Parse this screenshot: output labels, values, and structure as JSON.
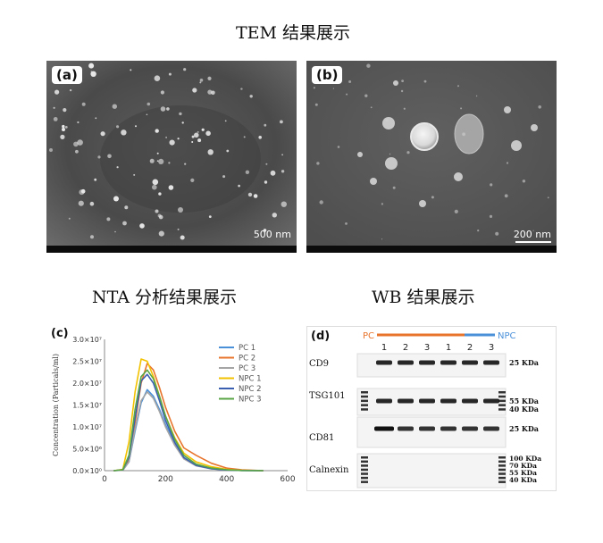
{
  "titles": {
    "tem": "TEM 结果展示",
    "nta": "NTA 分析结果展示",
    "wb": "WB 结果展示"
  },
  "tem_panels": [
    {
      "label": "(a)",
      "scale": "500 nm"
    },
    {
      "label": "(b)",
      "scale": "200 nm"
    }
  ],
  "chart_data": {
    "type": "line",
    "panel_label": "(c)",
    "ylabel": "Concentration (Particals/ml)",
    "xlim": [
      0,
      600
    ],
    "ylim": [
      0,
      30000000
    ],
    "x_ticks": [
      "0",
      "200",
      "400",
      "600"
    ],
    "y_ticks": [
      "0.0×10⁰",
      "5.0×10⁶",
      "1.0×10⁷",
      "1.5×10⁷",
      "2.0×10⁷",
      "2.5×10⁷",
      "3.0×10⁷"
    ],
    "x": [
      30,
      60,
      80,
      100,
      120,
      140,
      160,
      180,
      200,
      230,
      260,
      300,
      350,
      400,
      450,
      520
    ],
    "series": [
      {
        "name": "PC 1",
        "color": "#4a90d9",
        "values": [
          0,
          100000,
          2000000,
          9000000,
          15500000,
          18500000,
          17000000,
          14000000,
          10500000,
          6000000,
          2800000,
          1200000,
          500000,
          200000,
          50000,
          0
        ]
      },
      {
        "name": "PC 2",
        "color": "#e8742c",
        "values": [
          0,
          150000,
          2500000,
          11000000,
          20000000,
          24500000,
          23000000,
          19000000,
          14500000,
          9000000,
          5200000,
          3500000,
          1700000,
          600000,
          200000,
          0
        ]
      },
      {
        "name": "PC 3",
        "color": "#a5a5a5",
        "values": [
          0,
          100000,
          2000000,
          9500000,
          16000000,
          18000000,
          16500000,
          13500000,
          10000000,
          5800000,
          2700000,
          1100000,
          400000,
          150000,
          50000,
          0
        ]
      },
      {
        "name": "NPC 1",
        "color": "#f2c200",
        "values": [
          0,
          300000,
          6500000,
          18000000,
          25500000,
          25000000,
          21500000,
          17000000,
          12500000,
          7500000,
          4000000,
          2000000,
          900000,
          300000,
          100000,
          0
        ]
      },
      {
        "name": "NPC 2",
        "color": "#3b5fb0",
        "values": [
          0,
          200000,
          3000000,
          12000000,
          20500000,
          22000000,
          20000000,
          16000000,
          11500000,
          6500000,
          3000000,
          1200000,
          450000,
          150000,
          50000,
          0
        ]
      },
      {
        "name": "NPC 3",
        "color": "#5aa646",
        "values": [
          0,
          200000,
          3500000,
          14000000,
          21500000,
          23000000,
          21000000,
          17000000,
          12500000,
          7200000,
          3500000,
          1500000,
          600000,
          200000,
          50000,
          0
        ]
      }
    ]
  },
  "wb": {
    "panel_label": "(d)",
    "pc_label": "PC",
    "npc_label": "NPC",
    "pc_color": "#e8742c",
    "npc_color": "#4a90d9",
    "lanes": [
      "1",
      "2",
      "3",
      "1",
      "2",
      "3"
    ],
    "rows": [
      {
        "name": "CD9",
        "kda": [
          "25 KDa"
        ]
      },
      {
        "name": "TSG101",
        "kda": [
          "55 KDa",
          "40 KDa"
        ]
      },
      {
        "name": "CD81",
        "kda": [
          "25 KDa"
        ]
      },
      {
        "name": "Calnexin",
        "kda": [
          "100 KDa",
          "70 KDa",
          "55 KDa",
          "40 KDa"
        ]
      }
    ]
  }
}
